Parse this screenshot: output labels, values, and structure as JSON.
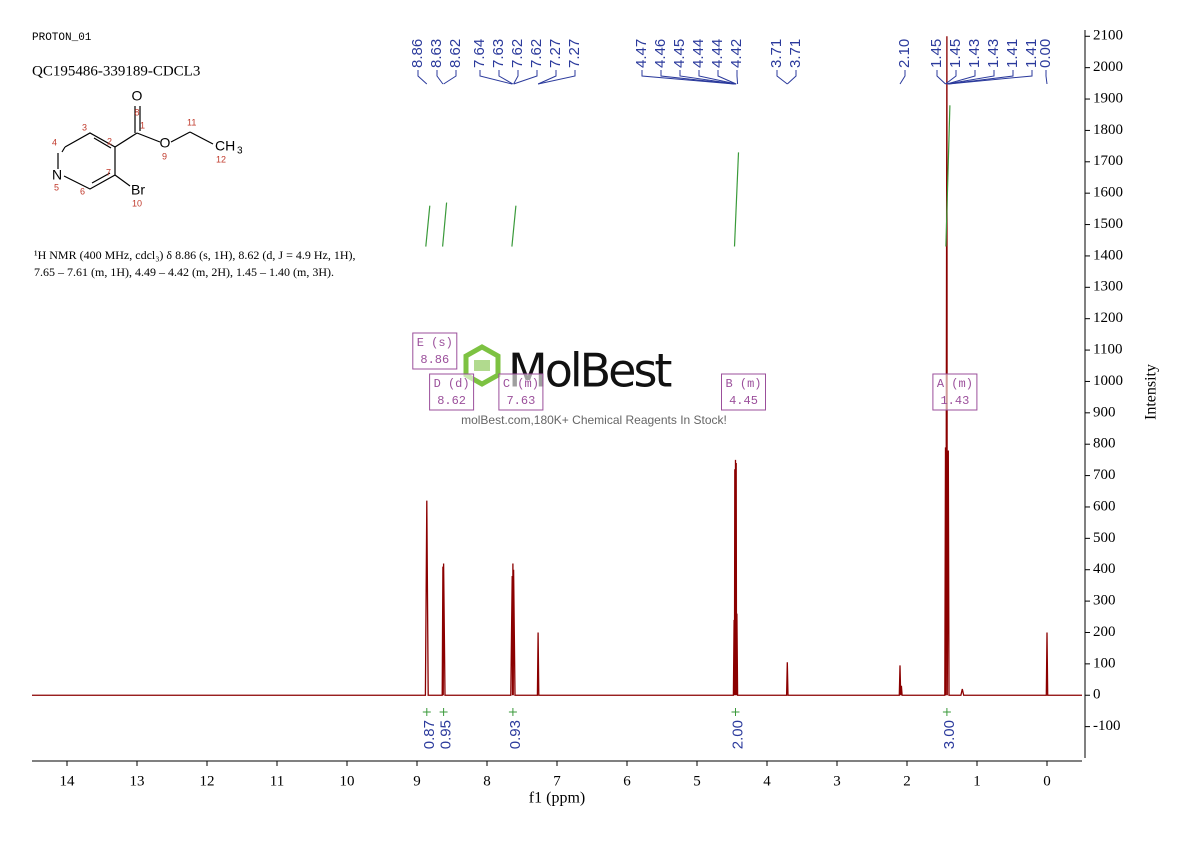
{
  "header": {
    "experiment": "PROTON_01",
    "sample": "QC195486-339189-CDCL3"
  },
  "description": [
    "¹H NMR (400 MHz, cdcl₃) δ 8.86 (s, 1H), 8.62 (d, J = 4.9 Hz, 1H),",
    "7.65 – 7.61 (m, 1H), 4.49 – 4.42 (m, 2H), 1.45 – 1.40 (m, 3H)."
  ],
  "structure": {
    "labels": [
      "O",
      "8",
      "1",
      "2",
      "3",
      "4",
      "N",
      "5",
      "6",
      "7",
      "Br",
      "10",
      "O",
      "9",
      "11",
      "CH",
      "3",
      "12"
    ]
  },
  "watermark": {
    "logo": "MolBest",
    "tagline": "molBest.com,180K+ Chemical Reagents In Stock!"
  },
  "chart_data": {
    "type": "line",
    "x_label": "f1 (ppm)",
    "y_label": "Intensity",
    "xlim": [
      14.5,
      -0.5
    ],
    "xticks": [
      14,
      13,
      12,
      11,
      10,
      9,
      8,
      7,
      6,
      5,
      4,
      3,
      2,
      1,
      0
    ],
    "ylim": [
      -200,
      2120
    ],
    "yticks": [
      -100,
      0,
      100,
      200,
      300,
      400,
      500,
      600,
      700,
      800,
      900,
      1000,
      1100,
      1200,
      1300,
      1400,
      1500,
      1600,
      1700,
      1800,
      1900,
      2000,
      2100
    ],
    "color": "#8b0000",
    "x": [
      14.5,
      8.88,
      8.86,
      8.84,
      8.64,
      8.63,
      8.625,
      8.62,
      8.6,
      7.66,
      7.64,
      7.635,
      7.63,
      7.625,
      7.62,
      7.6,
      7.28,
      7.27,
      7.26,
      4.48,
      4.47,
      4.465,
      4.46,
      4.455,
      4.45,
      4.445,
      4.44,
      4.435,
      4.43,
      4.42,
      3.72,
      3.71,
      3.7,
      2.11,
      2.1,
      2.09,
      2.08,
      2.07,
      1.46,
      1.45,
      1.445,
      1.43,
      1.425,
      1.41,
      1.4,
      1.23,
      1.21,
      1.19,
      0.01,
      0,
      -0.01,
      -0.5
    ],
    "values": [
      0,
      0,
      620,
      0,
      0,
      410,
      0,
      420,
      0,
      0,
      380,
      0,
      420,
      0,
      400,
      0,
      0,
      200,
      0,
      0,
      240,
      0,
      720,
      0,
      750,
      0,
      740,
      0,
      260,
      0,
      0,
      105,
      0,
      0,
      95,
      0,
      30,
      0,
      0,
      790,
      0,
      2100,
      0,
      780,
      0,
      0,
      20,
      0,
      0,
      200,
      0,
      0
    ],
    "peak_labels": [
      8.86,
      8.63,
      8.62,
      7.64,
      7.63,
      7.62,
      7.62,
      7.27,
      7.27,
      4.47,
      4.46,
      4.45,
      4.44,
      4.44,
      4.42,
      3.71,
      3.71,
      {
        "value": 2.1,
        "label": "2.10"
      },
      1.45,
      1.45,
      1.43,
      1.43,
      1.41,
      1.41,
      {
        "value": 0,
        "label": "0.00"
      }
    ],
    "peak_label_color": "#2b3a9c",
    "integrals": {
      "x": [
        8.86,
        8.62,
        7.63,
        4.45,
        1.43
      ],
      "values": [
        0.87,
        0.95,
        0.93,
        2,
        3
      ],
      "value_labels": [
        "0.87",
        "0.95",
        "0.93",
        "2.00",
        "3.00"
      ],
      "curve_start": [
        1430,
        1430,
        1430,
        1430,
        1430
      ],
      "curve_end": [
        1560,
        1570,
        1560,
        1730,
        1880
      ]
    },
    "integral_color": "#3a9a3a",
    "multiplets": [
      {
        "name": "E (s)",
        "shift": 8.86
      },
      {
        "name": "D (d)",
        "shift": 8.62
      },
      {
        "name": "C (m)",
        "shift": 7.63
      },
      {
        "name": "B (m)",
        "shift": 4.45
      },
      {
        "name": "A (m)",
        "shift": 1.43
      }
    ],
    "multiplet_color": "#9b4f9b"
  }
}
